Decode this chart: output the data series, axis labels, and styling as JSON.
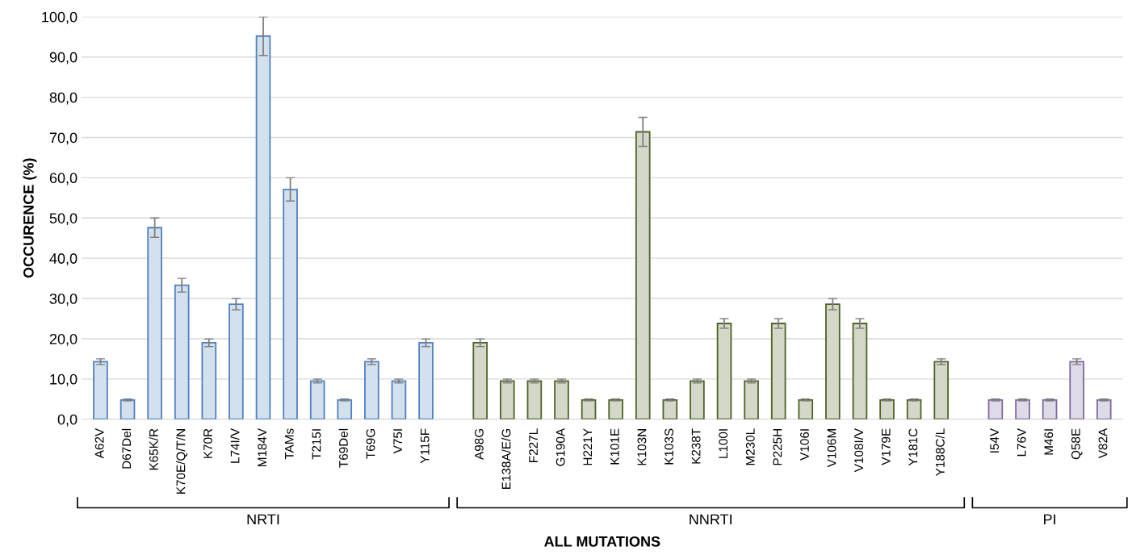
{
  "chart_data": {
    "type": "bar",
    "ylabel": "OCCURENCE (%)",
    "xlabel": "ALL MUTATIONS",
    "categories": [
      "A62V",
      "D67Del",
      "K65K/R",
      "K70E/Q/T/N",
      "K70R",
      "L74I/V",
      "M184V",
      "TAMs",
      "T215I",
      "T69Del",
      "T69G",
      "V75I",
      "Y115F",
      null,
      "A98G",
      "E138A/E/G",
      "F227L",
      "G190A",
      "H221Y",
      "K101E",
      "K103N",
      "K103S",
      "K238T",
      "L100I",
      "M230L",
      "P225H",
      "V106I",
      "V106M",
      "V108I/V",
      "V179E",
      "Y181C",
      "Y188C/L",
      null,
      "I54V",
      "L76V",
      "M46I",
      "Q58E",
      "V82A"
    ],
    "values": [
      14.3,
      4.8,
      47.6,
      33.3,
      19.0,
      28.6,
      95.2,
      57.1,
      9.5,
      4.8,
      14.3,
      9.5,
      19.0,
      null,
      19.0,
      9.5,
      9.5,
      9.5,
      4.8,
      4.8,
      71.4,
      4.8,
      9.5,
      23.8,
      9.5,
      23.8,
      4.8,
      28.6,
      23.8,
      4.8,
      4.8,
      14.3,
      null,
      4.8,
      4.8,
      4.8,
      14.3,
      4.8
    ],
    "errors": [
      0.7,
      0.24,
      2.4,
      1.7,
      0.95,
      1.4,
      4.8,
      2.9,
      0.48,
      0.24,
      0.7,
      0.48,
      0.95,
      null,
      0.95,
      0.48,
      0.48,
      0.48,
      0.24,
      0.24,
      3.6,
      0.24,
      0.48,
      1.2,
      0.48,
      1.2,
      0.24,
      1.4,
      1.2,
      0.24,
      0.24,
      0.7,
      null,
      0.24,
      0.24,
      0.24,
      0.7,
      0.24
    ],
    "colors": [
      "#4f81bd",
      "#4f81bd",
      "#4f81bd",
      "#4f81bd",
      "#4f81bd",
      "#4f81bd",
      "#4f81bd",
      "#4f81bd",
      "#4f81bd",
      "#4f81bd",
      "#4f81bd",
      "#4f81bd",
      "#4f81bd",
      null,
      "#4f6228",
      "#4f6228",
      "#4f6228",
      "#4f6228",
      "#4f6228",
      "#4f6228",
      "#4f6228",
      "#4f6228",
      "#4f6228",
      "#4f6228",
      "#4f6228",
      "#4f6228",
      "#4f6228",
      "#4f6228",
      "#4f6228",
      "#4f6228",
      "#4f6228",
      "#4f6228",
      null,
      "#7f6a9f",
      "#7f6a9f",
      "#7f6a9f",
      "#7f6a9f",
      "#7f6a9f"
    ],
    "annotations": [
      "NRTI",
      "NNRTI",
      "PI"
    ],
    "ylim": [
      0,
      100
    ],
    "yticks": [
      {
        "value": 0,
        "label": "0,0"
      },
      {
        "value": 10,
        "label": "10,0"
      },
      {
        "value": 20,
        "label": "20,0"
      },
      {
        "value": 30,
        "label": "30,0"
      },
      {
        "value": 40,
        "label": "40,0"
      },
      {
        "value": 50,
        "label": "50,0"
      },
      {
        "value": 60,
        "label": "60,0"
      },
      {
        "value": 70,
        "label": "70,0"
      },
      {
        "value": 80,
        "label": "80,0"
      },
      {
        "value": 90,
        "label": "90,0"
      },
      {
        "value": 100,
        "label": "100,0"
      }
    ],
    "grid": "y",
    "legend": false
  }
}
